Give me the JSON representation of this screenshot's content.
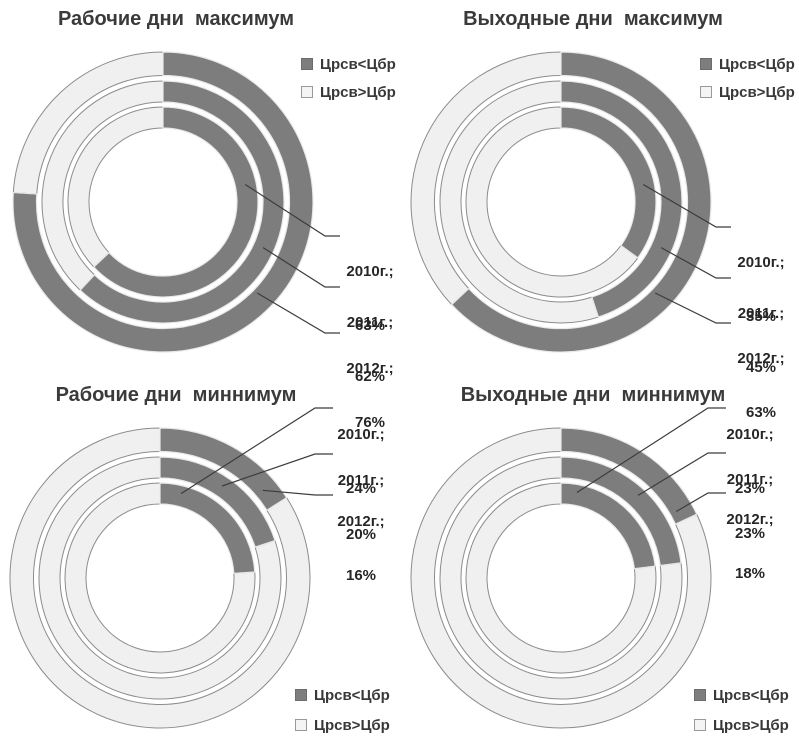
{
  "colors": {
    "background": "#ffffff",
    "dark_slice": "#7d7d7d",
    "light_slice": "#f0f0f0",
    "light_slice_border": "#8c8c8c",
    "dark_slice_border": "#e9e9e9",
    "leader_line": "#3c3c3c",
    "title_text": "#3a3a3a",
    "label_text": "#262626",
    "legend_text": "#383838"
  },
  "chart_data": [
    {
      "type": "donut",
      "title": "Рабочие дни  максимум",
      "direction": "clockwise",
      "start_angle_deg": 0,
      "ring_order": "inner-to-outer",
      "categories": [
        "2010г.",
        "2011г.",
        "2012г."
      ],
      "series": [
        {
          "name": "Црсв<Цбр",
          "values": [
            63,
            62,
            76
          ]
        },
        {
          "name": "Црсв>Цбр",
          "values": [
            37,
            38,
            24
          ]
        }
      ],
      "annotations": [
        {
          "line1": "2010г.;",
          "line2": "63%"
        },
        {
          "line1": "2011г.;",
          "line2": "62%"
        },
        {
          "line1": "2012г.;",
          "line2": "76%"
        }
      ],
      "legend_position": "top-right",
      "legend": [
        {
          "label": "Црсв<Цбр",
          "swatch": "dark"
        },
        {
          "label": "Црсв>Цбр",
          "swatch": "light"
        }
      ]
    },
    {
      "type": "donut",
      "title": "Выходные дни  максимум",
      "direction": "clockwise",
      "start_angle_deg": 0,
      "ring_order": "inner-to-outer",
      "categories": [
        "2010г.",
        "2011г.",
        "2012г."
      ],
      "series": [
        {
          "name": "Црсв<Цбр",
          "values": [
            35,
            45,
            63
          ]
        },
        {
          "name": "Црсв>Цбр",
          "values": [
            65,
            55,
            37
          ]
        }
      ],
      "annotations": [
        {
          "line1": "2010г.;",
          "line2": "35%"
        },
        {
          "line1": "2011г.;",
          "line2": "45%"
        },
        {
          "line1": "2012г.;",
          "line2": "63%"
        }
      ],
      "legend_position": "top-right",
      "legend": [
        {
          "label": "Црсв<Цбр",
          "swatch": "dark"
        },
        {
          "label": "Црсв>Цбр",
          "swatch": "light"
        }
      ]
    },
    {
      "type": "donut",
      "title": "Рабочие дни  миннимум",
      "direction": "clockwise",
      "start_angle_deg": 0,
      "ring_order": "inner-to-outer",
      "categories": [
        "2010г.",
        "2011г.",
        "2012г."
      ],
      "series": [
        {
          "name": "Црсв<Цбр",
          "values": [
            24,
            20,
            16
          ]
        },
        {
          "name": "Црсв>Цбр",
          "values": [
            76,
            80,
            84
          ]
        }
      ],
      "annotations": [
        {
          "line1": "2010г.;",
          "line2": "24%"
        },
        {
          "line1": "2011г.;",
          "line2": "20%"
        },
        {
          "line1": "2012г.;",
          "line2": "16%"
        }
      ],
      "legend_position": "bottom-right",
      "legend": [
        {
          "label": "Црсв<Цбр",
          "swatch": "dark"
        },
        {
          "label": "Црсв>Цбр",
          "swatch": "light"
        }
      ]
    },
    {
      "type": "donut",
      "title": "Выходные дни  миннимум",
      "direction": "clockwise",
      "start_angle_deg": 0,
      "ring_order": "inner-to-outer",
      "categories": [
        "2010г.",
        "2011г.",
        "2012г."
      ],
      "series": [
        {
          "name": "Црсв<Цбр",
          "values": [
            23,
            23,
            18
          ]
        },
        {
          "name": "Црсв>Цбр",
          "values": [
            77,
            77,
            82
          ]
        }
      ],
      "annotations": [
        {
          "line1": "2010г.;",
          "line2": "23%"
        },
        {
          "line1": "2011г.;",
          "line2": "23%"
        },
        {
          "line1": "2012г.;",
          "line2": "18%"
        }
      ],
      "legend_position": "bottom-right",
      "legend": [
        {
          "label": "Црсв<Цбр",
          "swatch": "dark"
        },
        {
          "label": "Црсв>Цбр",
          "swatch": "light"
        }
      ]
    }
  ]
}
